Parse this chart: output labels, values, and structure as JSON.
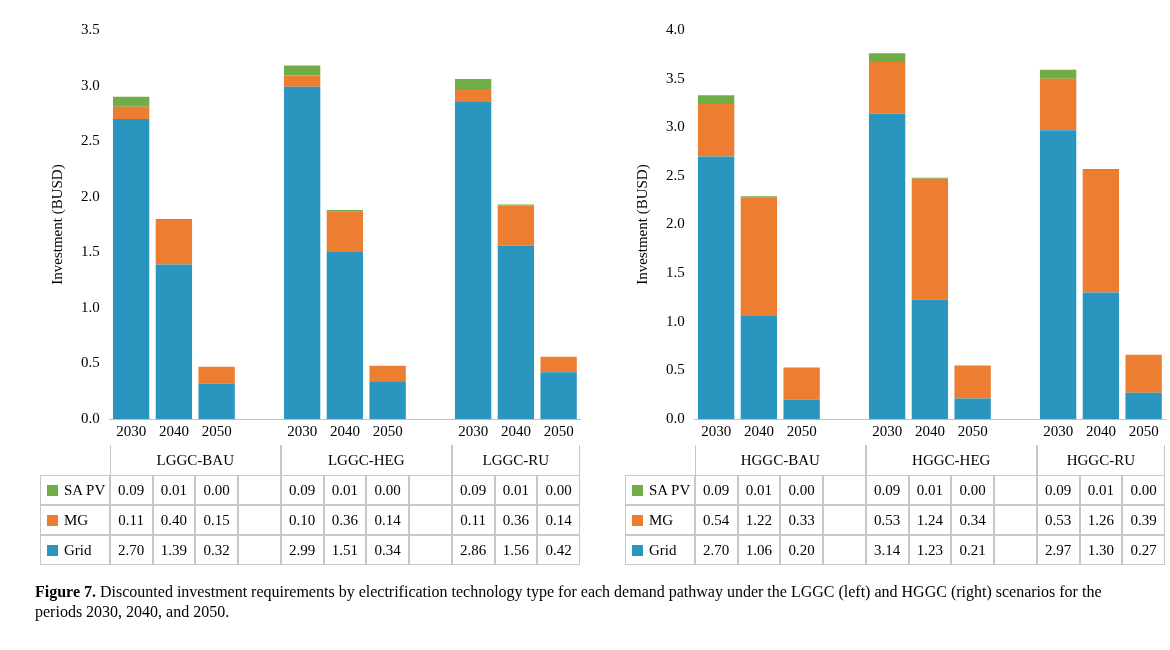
{
  "chart_data": [
    {
      "type": "bar",
      "stacked": true,
      "ylabel": "Investment (BUSD)",
      "ylim": [
        0,
        3.5
      ],
      "yticks": [
        {
          "value": 0,
          "label": "0.0"
        },
        {
          "value": 0.5,
          "label": "0.5"
        },
        {
          "value": 1,
          "label": "1.0"
        },
        {
          "value": 1.5,
          "label": "1.5"
        },
        {
          "value": 2,
          "label": "2.0"
        },
        {
          "value": 2.5,
          "label": "2.5"
        },
        {
          "value": 3,
          "label": "3.0"
        },
        {
          "value": 3.5,
          "label": "3.5"
        }
      ],
      "legend": "bottom",
      "categories": [
        "2030",
        "2040",
        "2050",
        null,
        "2030",
        "2040",
        "2050",
        null,
        "2030",
        "2040",
        "2050"
      ],
      "series": [
        {
          "name": "Grid",
          "color": "#2a96c0",
          "values": [
            2.7,
            1.39,
            0.32,
            null,
            2.99,
            1.51,
            0.34,
            null,
            2.86,
            1.56,
            0.42
          ],
          "value_labels": [
            "2.70",
            "1.39",
            "0.32",
            null,
            "2.99",
            "1.51",
            "0.34",
            null,
            "2.86",
            "1.56",
            "0.42"
          ]
        },
        {
          "name": "MG",
          "color": "#ed7d31",
          "values": [
            0.11,
            0.4,
            0.15,
            null,
            0.1,
            0.36,
            0.14,
            null,
            0.11,
            0.36,
            0.14
          ],
          "value_labels": [
            "0.11",
            "0.40",
            "0.15",
            null,
            "0.10",
            "0.36",
            "0.14",
            null,
            "0.11",
            "0.36",
            "0.14"
          ]
        },
        {
          "name": "SA PV",
          "color": "#70ad47",
          "values": [
            0.09,
            0.01,
            0.0,
            null,
            0.09,
            0.01,
            0.0,
            null,
            0.09,
            0.01,
            0.0
          ],
          "value_labels": [
            "0.09",
            "0.01",
            "0.00",
            null,
            "0.09",
            "0.01",
            "0.00",
            null,
            "0.09",
            "0.01",
            "0.00"
          ]
        }
      ],
      "annotations": [
        "LGGC-BAU",
        "LGGC-HEG",
        "LGGC-RU",
        "Figure 7. Discounted investment requirements by electrification technology type for each demand pathway under the LGGC (left) and HGGC (right) scenarios for the periods 2030, 2040, and 2050."
      ]
    },
    {
      "type": "bar",
      "stacked": true,
      "ylabel": "Investment (BUSD)",
      "ylim": [
        0,
        4
      ],
      "yticks": [
        {
          "value": 0,
          "label": "0.0"
        },
        {
          "value": 0.5,
          "label": "0.5"
        },
        {
          "value": 1,
          "label": "1.0"
        },
        {
          "value": 1.5,
          "label": "1.5"
        },
        {
          "value": 2,
          "label": "2.0"
        },
        {
          "value": 2.5,
          "label": "2.5"
        },
        {
          "value": 3,
          "label": "3.0"
        },
        {
          "value": 3.5,
          "label": "3.5"
        },
        {
          "value": 4,
          "label": "4.0"
        }
      ],
      "legend": "bottom",
      "categories": [
        "2030",
        "2040",
        "2050",
        null,
        "2030",
        "2040",
        "2050",
        null,
        "2030",
        "2040",
        "2050"
      ],
      "series": [
        {
          "name": "Grid",
          "color": "#2a96c0",
          "values": [
            2.7,
            1.06,
            0.2,
            null,
            3.14,
            1.23,
            0.21,
            null,
            2.97,
            1.3,
            0.27
          ],
          "value_labels": [
            "2.70",
            "1.06",
            "0.20",
            null,
            "3.14",
            "1.23",
            "0.21",
            null,
            "2.97",
            "1.30",
            "0.27"
          ]
        },
        {
          "name": "MG",
          "color": "#ed7d31",
          "values": [
            0.54,
            1.22,
            0.33,
            null,
            0.53,
            1.24,
            0.34,
            null,
            0.53,
            1.26,
            0.39
          ],
          "value_labels": [
            "0.54",
            "1.22",
            "0.33",
            null,
            "0.53",
            "1.24",
            "0.34",
            null,
            "0.53",
            "1.26",
            "0.39"
          ]
        },
        {
          "name": "SA PV",
          "color": "#70ad47",
          "values": [
            0.09,
            0.01,
            0.0,
            null,
            0.09,
            0.01,
            0.0,
            null,
            0.09,
            0.01,
            0.0
          ],
          "value_labels": [
            "0.09",
            "0.01",
            "0.00",
            null,
            "0.09",
            "0.01",
            "0.00",
            null,
            "0.09",
            "0.01",
            "0.00"
          ]
        }
      ],
      "annotations": [
        "HGGC-BAU",
        "HGGC-HEG",
        "HGGC-RU"
      ]
    }
  ]
}
